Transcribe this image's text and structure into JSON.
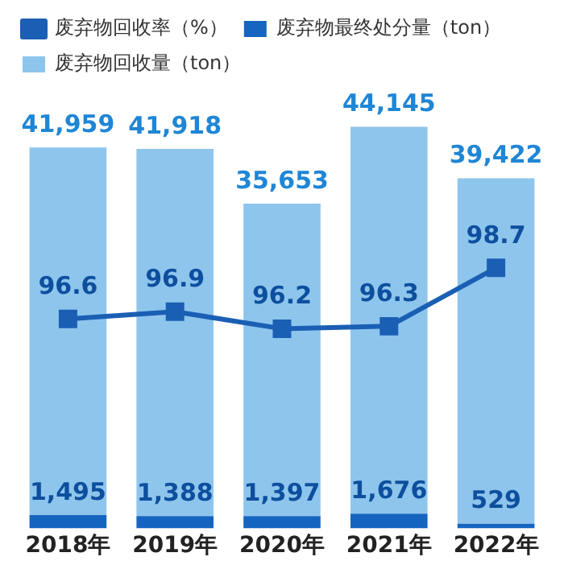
{
  "chart_data": {
    "type": "bar",
    "categories": [
      "2018年",
      "2019年",
      "2020年",
      "2021年",
      "2022年"
    ],
    "stacked": true,
    "series": [
      {
        "name": "废弃物最终处分量（ton）",
        "color": "#1565c0",
        "values": [
          1495,
          1388,
          1397,
          1676,
          529
        ],
        "value_labels": [
          "1,495",
          "1,388",
          "1,397",
          "1,676",
          "529"
        ]
      },
      {
        "name": "废弃物回收量（ton）",
        "color": "#8ec5ec",
        "values": [
          41959,
          41918,
          35653,
          44145,
          39422
        ],
        "value_labels": [
          "41,959",
          "41,918",
          "35,653",
          "44,145",
          "39,422"
        ]
      },
      {
        "name": "废弃物回收率（%）",
        "type": "line",
        "axis": "y2",
        "color": "#1a5fb4",
        "marker": "square",
        "values": [
          96.6,
          96.9,
          96.2,
          96.3,
          98.7
        ],
        "value_labels": [
          "96.6",
          "96.9",
          "96.2",
          "96.3",
          "98.7"
        ]
      }
    ],
    "tick_labels": "x",
    "grid": false,
    "legend": "top"
  }
}
